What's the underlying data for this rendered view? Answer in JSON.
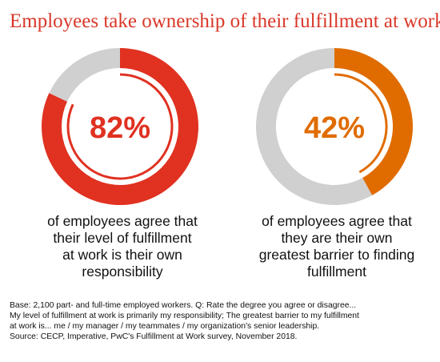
{
  "title": "Employees take ownership of their fulfillment at work",
  "colors": {
    "title": "#d93829",
    "remainder": "#d0d0d0"
  },
  "chart_data": [
    {
      "type": "pie",
      "value": 82,
      "remainder": 18,
      "label": "82%",
      "accent": "#e03121",
      "caption": [
        "of employees agree that",
        "their level of fulfillment",
        "at work is their own",
        "responsibility"
      ]
    },
    {
      "type": "pie",
      "value": 42,
      "remainder": 58,
      "label": "42%",
      "accent": "#e06c00",
      "caption": [
        "of employees agree that",
        "they are their own",
        "greatest barrier to finding",
        "fulfillment"
      ]
    }
  ],
  "source_lines": [
    "Base: 2,100 part- and full-time employed workers. Q: Rate the degree you agree or disagree...",
    "My level of fulfillment at work is primarily my responsibility; The greatest barrier to my fulfillment",
    "at work is... me / my manager / my teammates / my organization's senior leadership.",
    "Source: CECP, Imperative, PwC's Fulfillment at Work survey, November 2018."
  ]
}
